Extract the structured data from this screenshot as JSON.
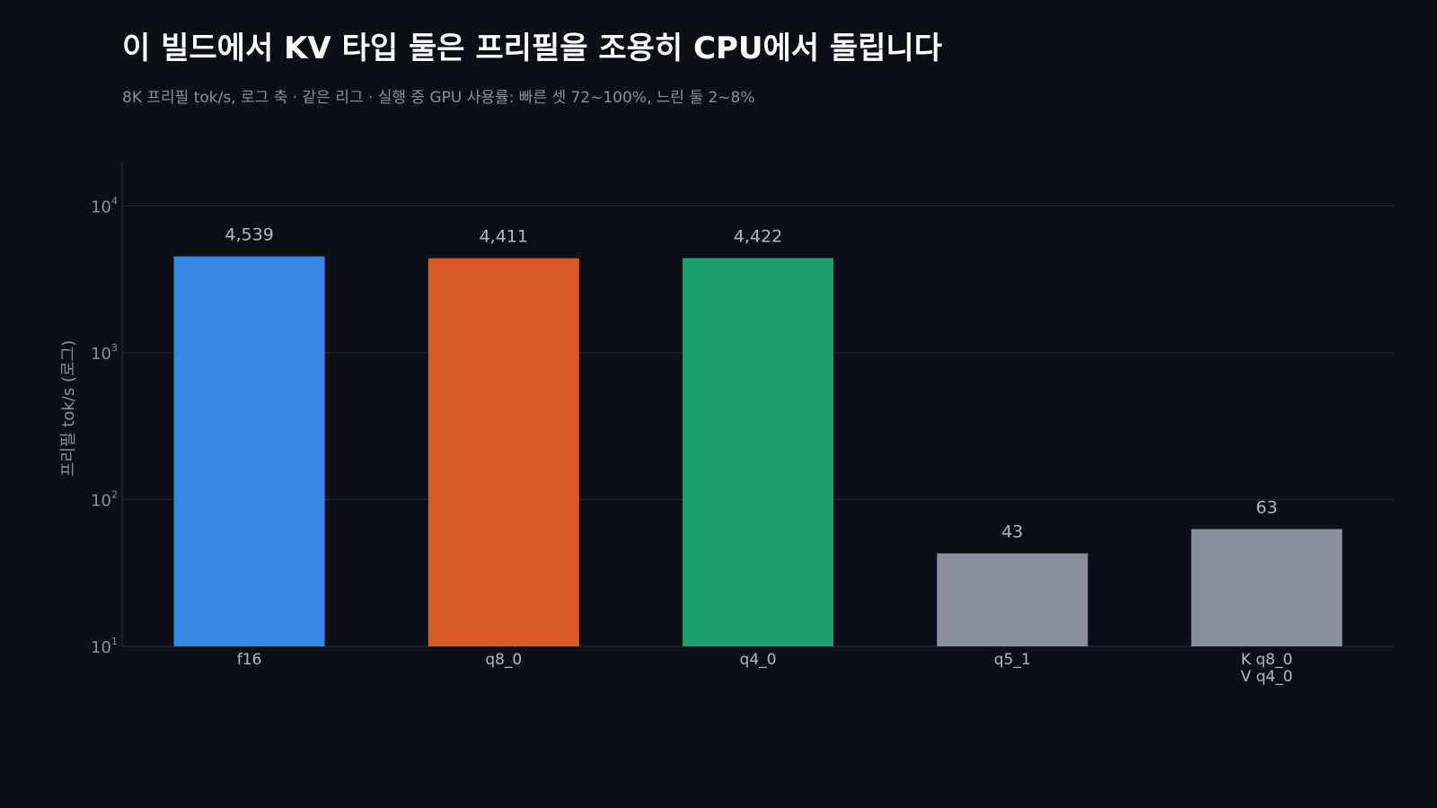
{
  "chart_data": {
    "type": "bar",
    "title": "이 빌드에서 KV 타입 둘은 프리필을 조용히 CPU에서 돌립니다",
    "subtitle": "8K 프리필 tok/s, 로그 축 · 같은 리그 · 실행 중 GPU 사용률: 빠른 셋 72~100%, 느린 둘 2~8%",
    "ylabel": "프리필 tok/s (로그)",
    "yscale": "log",
    "ylim": [
      10,
      20000
    ],
    "yticks": [
      {
        "value": 10,
        "base": "10",
        "exp": "1"
      },
      {
        "value": 100,
        "base": "10",
        "exp": "2"
      },
      {
        "value": 1000,
        "base": "10",
        "exp": "3"
      },
      {
        "value": 10000,
        "base": "10",
        "exp": "4"
      }
    ],
    "grid": true,
    "bars": [
      {
        "category": [
          "f16"
        ],
        "value": 4539,
        "label": "4,539",
        "color": "#3a88e6"
      },
      {
        "category": [
          "q8_0"
        ],
        "value": 4411,
        "label": "4,411",
        "color": "#d95a27"
      },
      {
        "category": [
          "q4_0"
        ],
        "value": 4422,
        "label": "4,422",
        "color": "#1a9e6e"
      },
      {
        "category": [
          "q5_1"
        ],
        "value": 43,
        "label": "43",
        "color": "#8a909b"
      },
      {
        "category": [
          "K q8_0",
          "V q4_0"
        ],
        "value": 63,
        "label": "63",
        "color": "#8a909b"
      }
    ]
  }
}
